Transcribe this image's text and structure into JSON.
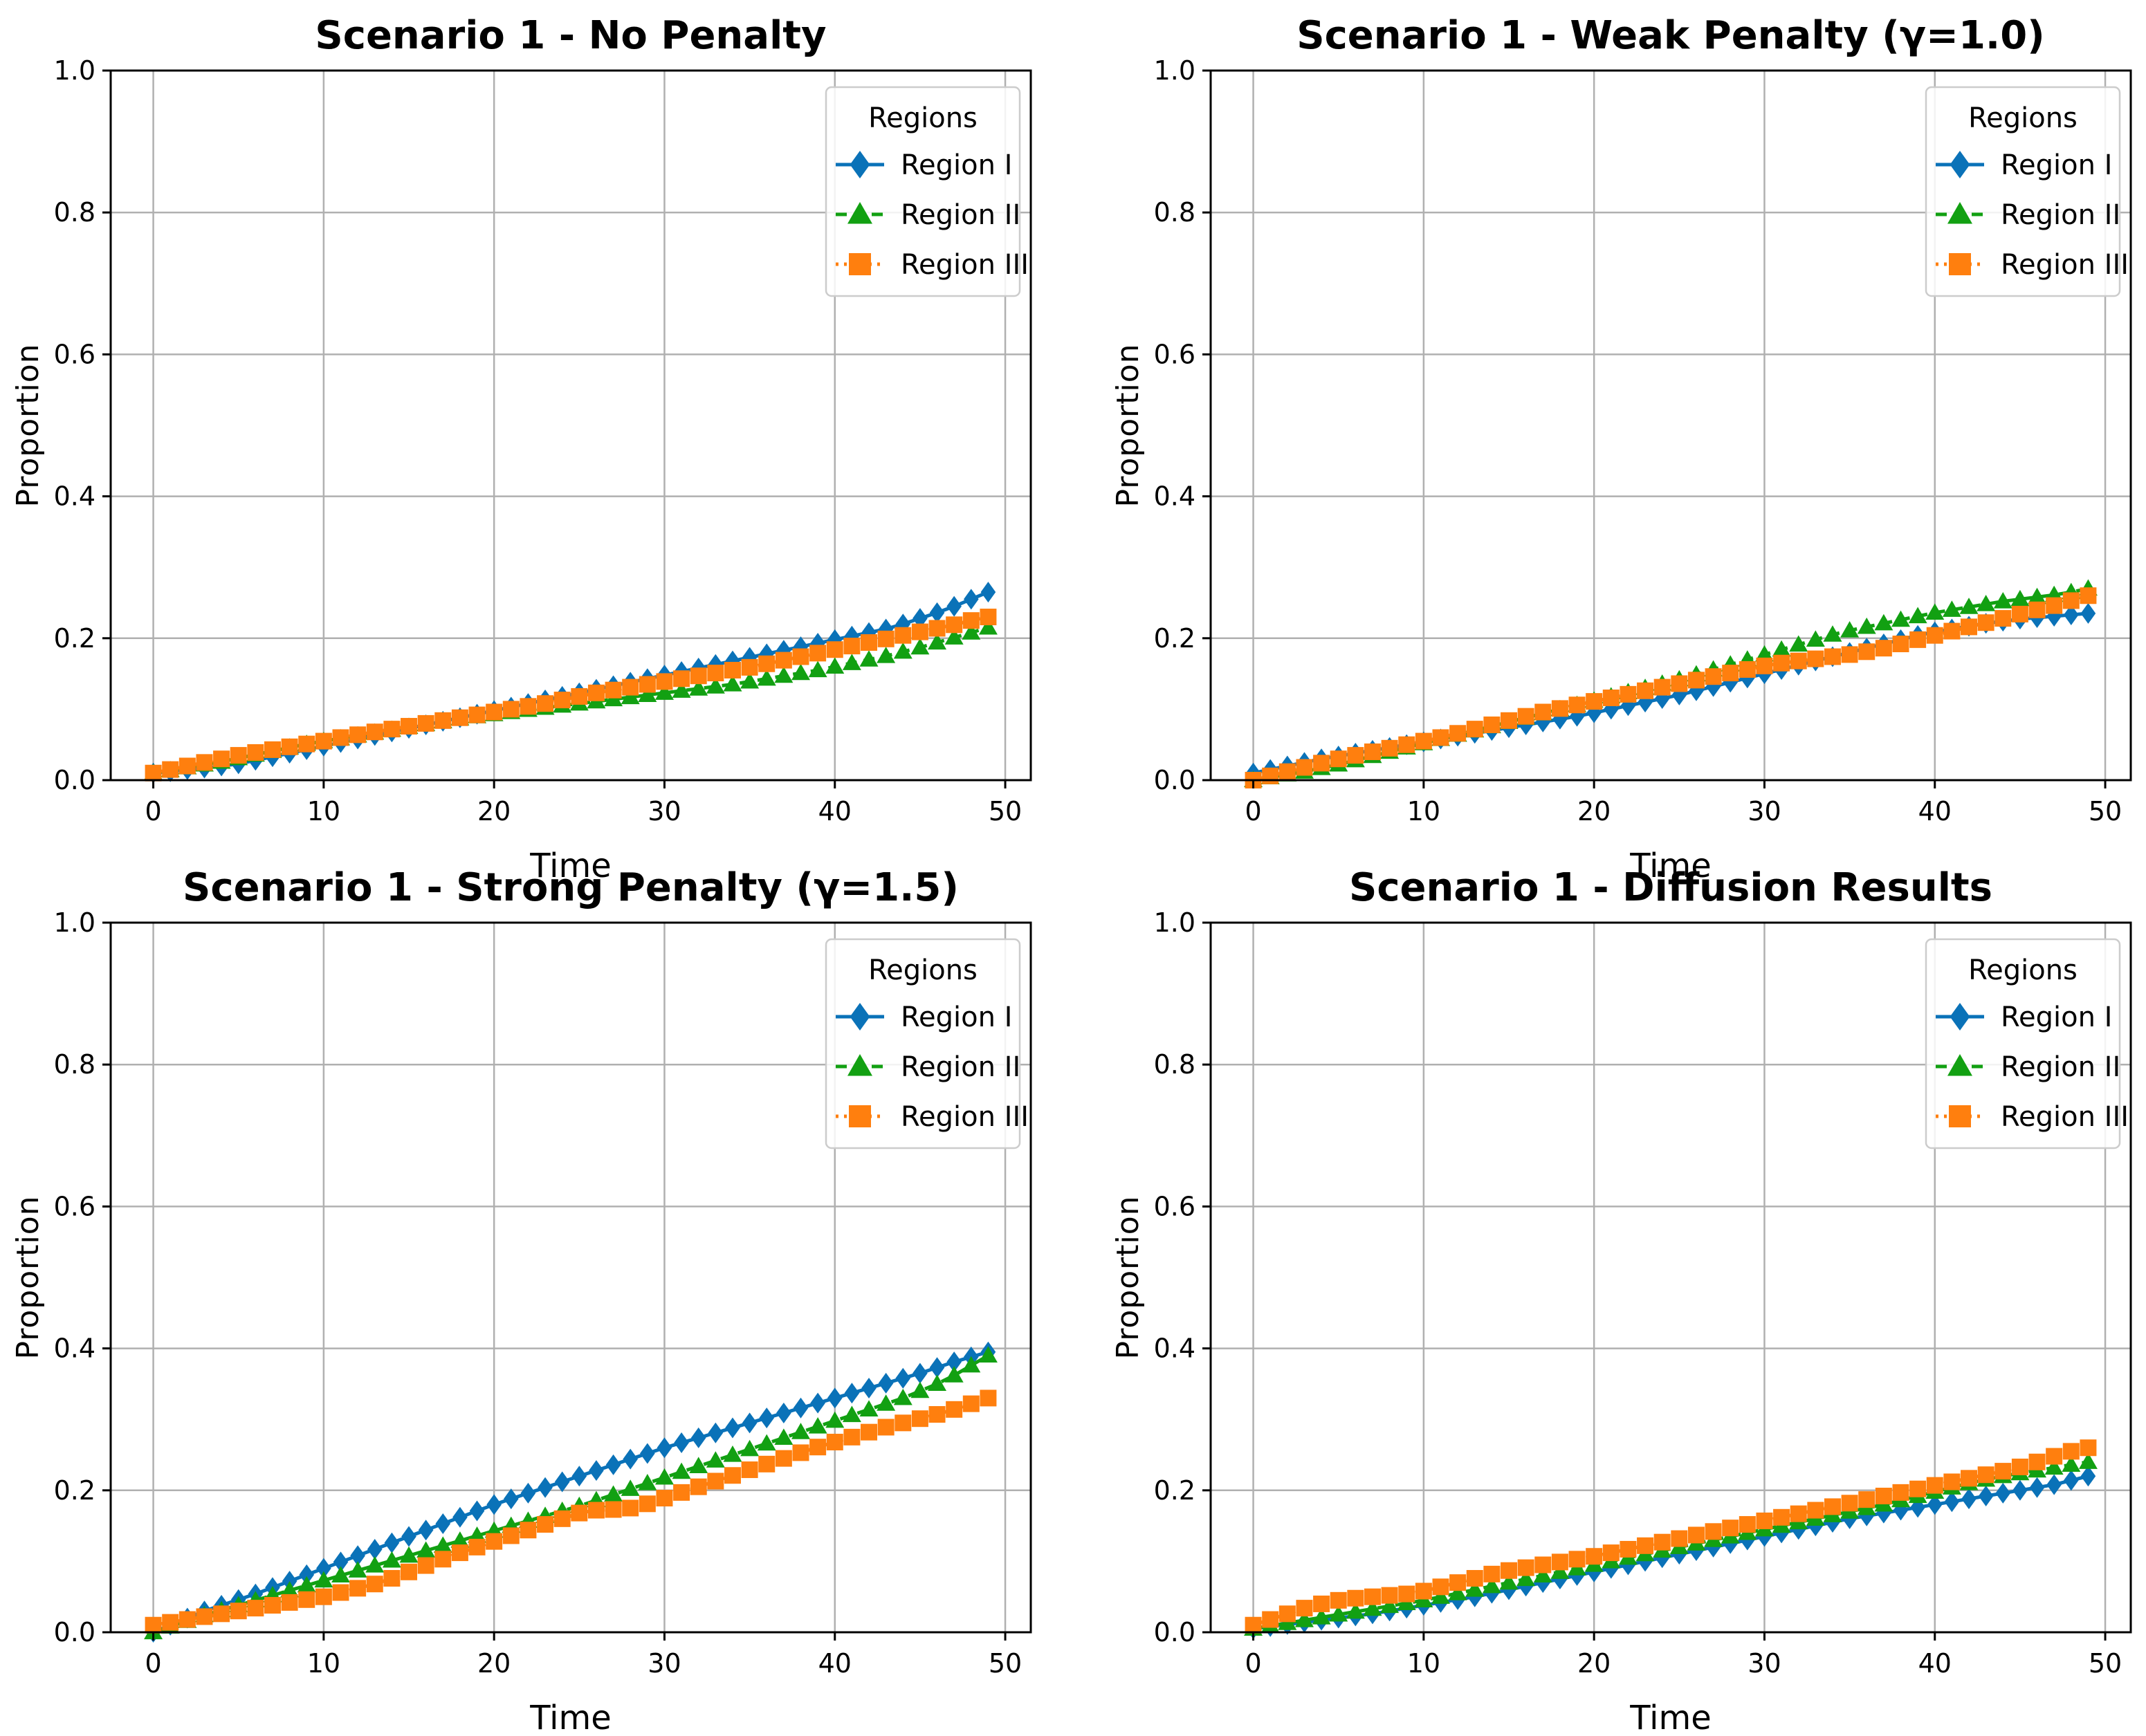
{
  "colors": {
    "region_1": "#0a72b8",
    "region_2": "#12a012",
    "region_3": "#ff7f0e",
    "grid": "#b0b0b0",
    "axis": "#000000"
  },
  "chart_data": [
    {
      "type": "line",
      "title": "Scenario 1 - No Penalty",
      "xlabel": "Time",
      "ylabel": "Proportion",
      "xlim": [
        -2.5,
        51.5
      ],
      "ylim": [
        0,
        1
      ],
      "xticks": [
        "0",
        "10",
        "20",
        "30",
        "40",
        "50"
      ],
      "yticks": [
        "0.0",
        "0.2",
        "0.4",
        "0.6",
        "0.8",
        "1.0"
      ],
      "grid": true,
      "legend": {
        "title": "Regions",
        "position": "top-right"
      },
      "series": [
        {
          "name": "Region I",
          "marker": "diamond",
          "linestyle": "solid",
          "start": 0.01,
          "end": 0.265,
          "values": [
            0.01,
            0.012,
            0.015,
            0.017,
            0.02,
            0.023,
            0.028,
            0.033,
            0.038,
            0.043,
            0.048,
            0.053,
            0.058,
            0.063,
            0.068,
            0.073,
            0.078,
            0.083,
            0.088,
            0.093,
            0.098,
            0.103,
            0.108,
            0.113,
            0.118,
            0.123,
            0.128,
            0.133,
            0.138,
            0.143,
            0.148,
            0.153,
            0.158,
            0.163,
            0.168,
            0.173,
            0.178,
            0.183,
            0.188,
            0.193,
            0.198,
            0.203,
            0.208,
            0.213,
            0.22,
            0.228,
            0.236,
            0.245,
            0.255,
            0.265
          ]
        },
        {
          "name": "Region II",
          "marker": "triangle",
          "linestyle": "dashed",
          "start": 0.01,
          "end": 0.215,
          "values": [
            0.01,
            0.014,
            0.018,
            0.022,
            0.026,
            0.031,
            0.036,
            0.041,
            0.046,
            0.051,
            0.055,
            0.059,
            0.063,
            0.067,
            0.071,
            0.075,
            0.079,
            0.083,
            0.087,
            0.09,
            0.093,
            0.096,
            0.099,
            0.102,
            0.105,
            0.108,
            0.111,
            0.114,
            0.117,
            0.12,
            0.123,
            0.126,
            0.129,
            0.132,
            0.135,
            0.139,
            0.143,
            0.147,
            0.151,
            0.155,
            0.16,
            0.165,
            0.17,
            0.175,
            0.181,
            0.187,
            0.194,
            0.201,
            0.208,
            0.215
          ]
        },
        {
          "name": "Region III",
          "marker": "square",
          "linestyle": "dotted",
          "start": 0.01,
          "end": 0.23,
          "values": [
            0.01,
            0.015,
            0.02,
            0.025,
            0.03,
            0.035,
            0.039,
            0.043,
            0.047,
            0.051,
            0.055,
            0.06,
            0.064,
            0.068,
            0.072,
            0.076,
            0.08,
            0.084,
            0.088,
            0.092,
            0.096,
            0.1,
            0.104,
            0.108,
            0.113,
            0.118,
            0.123,
            0.127,
            0.131,
            0.135,
            0.139,
            0.143,
            0.147,
            0.151,
            0.155,
            0.159,
            0.164,
            0.169,
            0.174,
            0.179,
            0.184,
            0.189,
            0.194,
            0.199,
            0.204,
            0.209,
            0.214,
            0.219,
            0.225,
            0.23
          ]
        }
      ]
    },
    {
      "type": "line",
      "title": "Scenario 1 - Weak Penalty (γ=1.0)",
      "xlabel": "Time",
      "ylabel": "Proportion",
      "xlim": [
        -2.5,
        51.5
      ],
      "ylim": [
        0,
        1
      ],
      "xticks": [
        "0",
        "10",
        "20",
        "30",
        "40",
        "50"
      ],
      "yticks": [
        "0.0",
        "0.2",
        "0.4",
        "0.6",
        "0.8",
        "1.0"
      ],
      "grid": true,
      "legend": {
        "title": "Regions",
        "position": "top-right"
      },
      "series": [
        {
          "name": "Region I",
          "marker": "diamond",
          "linestyle": "solid",
          "start": 0.01,
          "end": 0.235,
          "values": [
            0.01,
            0.015,
            0.02,
            0.025,
            0.03,
            0.034,
            0.038,
            0.042,
            0.046,
            0.05,
            0.054,
            0.058,
            0.062,
            0.066,
            0.07,
            0.074,
            0.078,
            0.082,
            0.086,
            0.09,
            0.095,
            0.1,
            0.105,
            0.11,
            0.115,
            0.12,
            0.126,
            0.132,
            0.138,
            0.144,
            0.15,
            0.156,
            0.162,
            0.168,
            0.174,
            0.18,
            0.186,
            0.192,
            0.198,
            0.204,
            0.209,
            0.213,
            0.217,
            0.221,
            0.224,
            0.227,
            0.229,
            0.231,
            0.233,
            0.235
          ]
        },
        {
          "name": "Region II",
          "marker": "triangle",
          "linestyle": "dashed",
          "start": 0.0,
          "end": 0.27,
          "values": [
            0.0,
            0.004,
            0.008,
            0.012,
            0.017,
            0.022,
            0.028,
            0.034,
            0.04,
            0.046,
            0.052,
            0.058,
            0.064,
            0.07,
            0.076,
            0.082,
            0.088,
            0.094,
            0.1,
            0.106,
            0.112,
            0.118,
            0.124,
            0.13,
            0.136,
            0.142,
            0.149,
            0.156,
            0.163,
            0.17,
            0.177,
            0.184,
            0.191,
            0.198,
            0.205,
            0.211,
            0.216,
            0.221,
            0.226,
            0.231,
            0.236,
            0.24,
            0.244,
            0.248,
            0.252,
            0.255,
            0.258,
            0.261,
            0.265,
            0.27
          ]
        },
        {
          "name": "Region III",
          "marker": "square",
          "linestyle": "dotted",
          "start": 0.0,
          "end": 0.26,
          "values": [
            0.0,
            0.006,
            0.012,
            0.018,
            0.024,
            0.03,
            0.035,
            0.04,
            0.045,
            0.05,
            0.055,
            0.06,
            0.066,
            0.072,
            0.078,
            0.084,
            0.09,
            0.096,
            0.101,
            0.106,
            0.111,
            0.116,
            0.121,
            0.126,
            0.131,
            0.136,
            0.141,
            0.146,
            0.151,
            0.156,
            0.161,
            0.165,
            0.168,
            0.171,
            0.174,
            0.177,
            0.181,
            0.186,
            0.192,
            0.198,
            0.204,
            0.21,
            0.216,
            0.222,
            0.228,
            0.234,
            0.24,
            0.246,
            0.253,
            0.26
          ]
        }
      ]
    },
    {
      "type": "line",
      "title": "Scenario 1 - Strong Penalty (γ=1.5)",
      "xlabel": "Time",
      "ylabel": "Proportion",
      "xlim": [
        -2.5,
        51.5
      ],
      "ylim": [
        0,
        1
      ],
      "xticks": [
        "0",
        "10",
        "20",
        "30",
        "40",
        "50"
      ],
      "yticks": [
        "0.0",
        "0.2",
        "0.4",
        "0.6",
        "0.8",
        "1.0"
      ],
      "grid": true,
      "legend": {
        "title": "Regions",
        "position": "top-right"
      },
      "series": [
        {
          "name": "Region I",
          "marker": "diamond",
          "linestyle": "solid",
          "start": 0.0,
          "end": 0.395,
          "values": [
            0.0,
            0.01,
            0.02,
            0.03,
            0.038,
            0.046,
            0.054,
            0.063,
            0.072,
            0.081,
            0.09,
            0.099,
            0.108,
            0.117,
            0.126,
            0.135,
            0.144,
            0.153,
            0.162,
            0.171,
            0.18,
            0.188,
            0.196,
            0.204,
            0.212,
            0.22,
            0.228,
            0.236,
            0.244,
            0.252,
            0.26,
            0.267,
            0.274,
            0.281,
            0.288,
            0.295,
            0.302,
            0.309,
            0.316,
            0.323,
            0.33,
            0.337,
            0.344,
            0.351,
            0.358,
            0.365,
            0.373,
            0.381,
            0.388,
            0.395
          ]
        },
        {
          "name": "Region II",
          "marker": "triangle",
          "linestyle": "dashed",
          "start": 0.0,
          "end": 0.39,
          "values": [
            0.0,
            0.008,
            0.016,
            0.024,
            0.031,
            0.038,
            0.045,
            0.052,
            0.059,
            0.066,
            0.073,
            0.08,
            0.087,
            0.094,
            0.101,
            0.108,
            0.115,
            0.122,
            0.129,
            0.136,
            0.143,
            0.15,
            0.157,
            0.164,
            0.171,
            0.178,
            0.186,
            0.194,
            0.202,
            0.21,
            0.218,
            0.226,
            0.234,
            0.242,
            0.25,
            0.258,
            0.266,
            0.274,
            0.282,
            0.29,
            0.298,
            0.306,
            0.314,
            0.322,
            0.33,
            0.34,
            0.35,
            0.362,
            0.376,
            0.39
          ]
        },
        {
          "name": "Region III",
          "marker": "square",
          "linestyle": "dotted",
          "start": 0.01,
          "end": 0.33,
          "values": [
            0.01,
            0.014,
            0.018,
            0.022,
            0.026,
            0.03,
            0.034,
            0.038,
            0.042,
            0.046,
            0.05,
            0.056,
            0.062,
            0.068,
            0.076,
            0.085,
            0.094,
            0.103,
            0.112,
            0.12,
            0.128,
            0.136,
            0.144,
            0.152,
            0.16,
            0.168,
            0.172,
            0.173,
            0.175,
            0.181,
            0.189,
            0.197,
            0.205,
            0.213,
            0.221,
            0.229,
            0.237,
            0.245,
            0.253,
            0.261,
            0.268,
            0.275,
            0.282,
            0.289,
            0.295,
            0.301,
            0.307,
            0.314,
            0.322,
            0.33
          ]
        }
      ]
    },
    {
      "type": "line",
      "title": "Scenario 1 - Diffusion Results",
      "xlabel": "Time",
      "ylabel": "Proportion",
      "xlim": [
        -2.5,
        51.5
      ],
      "ylim": [
        0,
        1
      ],
      "xticks": [
        "0",
        "10",
        "20",
        "30",
        "40",
        "50"
      ],
      "yticks": [
        "0.0",
        "0.2",
        "0.4",
        "0.6",
        "0.8",
        "1.0"
      ],
      "grid": true,
      "legend": {
        "title": "Regions",
        "position": "top-right"
      },
      "series": [
        {
          "name": "Region I",
          "marker": "diamond",
          "linestyle": "solid",
          "start": 0.005,
          "end": 0.22,
          "values": [
            0.005,
            0.008,
            0.011,
            0.014,
            0.017,
            0.02,
            0.023,
            0.026,
            0.03,
            0.034,
            0.038,
            0.042,
            0.046,
            0.05,
            0.055,
            0.06,
            0.065,
            0.07,
            0.075,
            0.08,
            0.085,
            0.09,
            0.095,
            0.1,
            0.105,
            0.11,
            0.115,
            0.12,
            0.125,
            0.13,
            0.135,
            0.14,
            0.145,
            0.15,
            0.155,
            0.16,
            0.164,
            0.168,
            0.172,
            0.176,
            0.18,
            0.184,
            0.188,
            0.192,
            0.196,
            0.2,
            0.204,
            0.208,
            0.214,
            0.22
          ]
        },
        {
          "name": "Region II",
          "marker": "triangle",
          "linestyle": "dashed",
          "start": 0.005,
          "end": 0.24,
          "values": [
            0.005,
            0.009,
            0.013,
            0.017,
            0.021,
            0.025,
            0.029,
            0.033,
            0.037,
            0.041,
            0.045,
            0.05,
            0.055,
            0.06,
            0.065,
            0.07,
            0.075,
            0.08,
            0.085,
            0.09,
            0.095,
            0.1,
            0.105,
            0.11,
            0.115,
            0.12,
            0.125,
            0.13,
            0.135,
            0.14,
            0.145,
            0.15,
            0.155,
            0.16,
            0.165,
            0.17,
            0.175,
            0.18,
            0.186,
            0.192,
            0.198,
            0.204,
            0.21,
            0.215,
            0.22,
            0.224,
            0.228,
            0.232,
            0.236,
            0.24
          ]
        },
        {
          "name": "Region III",
          "marker": "square",
          "linestyle": "dotted",
          "start": 0.01,
          "end": 0.26,
          "values": [
            0.01,
            0.018,
            0.026,
            0.034,
            0.04,
            0.045,
            0.048,
            0.05,
            0.052,
            0.054,
            0.058,
            0.064,
            0.07,
            0.076,
            0.082,
            0.087,
            0.091,
            0.095,
            0.099,
            0.103,
            0.107,
            0.112,
            0.117,
            0.122,
            0.127,
            0.132,
            0.137,
            0.142,
            0.147,
            0.152,
            0.157,
            0.162,
            0.167,
            0.172,
            0.177,
            0.182,
            0.187,
            0.192,
            0.197,
            0.202,
            0.207,
            0.212,
            0.217,
            0.222,
            0.227,
            0.233,
            0.24,
            0.248,
            0.255,
            0.26
          ]
        }
      ]
    }
  ]
}
